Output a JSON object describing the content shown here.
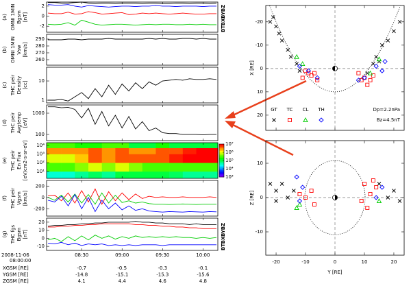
{
  "chart_data": [
    {
      "type": "line",
      "label": "(a)",
      "ylabel": [
        "OMNI 1MIN",
        "Bgsm",
        "[nT]"
      ],
      "xlim": [
        4,
        131
      ],
      "ylim": [
        -3.2,
        2.8
      ],
      "yticks": [
        2,
        0,
        -2
      ],
      "x": [
        5,
        10,
        15,
        20,
        25,
        30,
        35,
        40,
        45,
        50,
        55,
        60,
        65,
        70,
        75,
        80,
        85,
        90,
        95,
        100,
        105,
        110,
        115,
        120,
        125,
        130
      ],
      "series": [
        {
          "name": "BT",
          "color": "#000000",
          "values": [
            2.7,
            2.7,
            2.6,
            2.6,
            2.7,
            2.8,
            2.6,
            2.5,
            2.6,
            2.6,
            2.5,
            2.6,
            2.6,
            2.6,
            2.5,
            2.6,
            2.6,
            2.5,
            2.5,
            2.6,
            2.6,
            2.5,
            2.6,
            2.6,
            2.5,
            2.6
          ]
        },
        {
          "name": "BX",
          "color": "#0000ff",
          "values": [
            2.3,
            2.2,
            2.2,
            2.3,
            2.0,
            1.8,
            2.1,
            2.0,
            1.9,
            1.8,
            1.9,
            2.0,
            2.0,
            1.9,
            2.0,
            2.0,
            2.1,
            2.0,
            2.0,
            1.9,
            2.0,
            2.0,
            2.0,
            1.9,
            2.0,
            2.0
          ]
        },
        {
          "name": "BY",
          "color": "#ff0000",
          "values": [
            0.6,
            0.5,
            0.5,
            0.8,
            0.4,
            0.5,
            0.9,
            0.7,
            0.4,
            0.5,
            0.6,
            0.7,
            0.3,
            0.4,
            0.6,
            0.5,
            0.6,
            0.5,
            0.4,
            0.5,
            0.6,
            0.5,
            0.4,
            0.4,
            0.5,
            0.5
          ]
        },
        {
          "name": "BZ",
          "color": "#00cc00",
          "values": [
            -1.6,
            -1.7,
            -1.6,
            -1.3,
            -1.8,
            -0.8,
            -1.2,
            -1.6,
            -1.8,
            -1.7,
            -1.6,
            -1.6,
            -1.7,
            -1.8,
            -1.7,
            -1.6,
            -1.7,
            -1.6,
            -1.6,
            -1.7,
            -1.7,
            -1.6,
            -1.7,
            -1.6,
            -1.7,
            -1.7
          ]
        }
      ]
    },
    {
      "type": "line",
      "label": "(b)",
      "ylabel": [
        "OMNI 1MIN",
        "Vsw",
        "[km/s]"
      ],
      "xlim": [
        4,
        131
      ],
      "ylim": [
        252,
        297
      ],
      "yticks": [
        290,
        280,
        270,
        260
      ],
      "x": [
        5,
        10,
        15,
        20,
        25,
        30,
        35,
        40,
        45,
        50,
        55,
        60,
        65,
        70,
        75,
        80,
        85,
        90,
        95,
        100,
        105,
        110,
        115,
        120,
        125,
        130
      ],
      "series": [
        {
          "color": "#000000",
          "values": [
            289,
            289,
            289,
            290,
            290,
            289,
            290,
            290,
            290,
            291,
            290,
            290,
            290,
            290,
            290,
            291,
            290,
            291,
            290,
            290,
            291,
            291,
            290,
            291,
            290,
            290
          ]
        }
      ]
    },
    {
      "type": "line",
      "label": "(c)",
      "ylabel": [
        "THC peir",
        "Density",
        "[cc]"
      ],
      "xlim": [
        4,
        131
      ],
      "ylim": [
        0.72,
        52
      ],
      "log": true,
      "yticks": [
        10,
        1
      ],
      "x": [
        5,
        10,
        15,
        20,
        25,
        30,
        35,
        40,
        45,
        50,
        55,
        60,
        65,
        70,
        75,
        80,
        85,
        90,
        95,
        100,
        105,
        110,
        115,
        120,
        125,
        130
      ],
      "series": [
        {
          "color": "#000000",
          "values": [
            1.0,
            1.0,
            1.1,
            0.9,
            1.5,
            2.5,
            1.2,
            4,
            1.5,
            6,
            2,
            7,
            3,
            8,
            4,
            9,
            6,
            10,
            11,
            12,
            11,
            13,
            12,
            12,
            13,
            12
          ]
        }
      ]
    },
    {
      "type": "line",
      "label": "(d)",
      "ylabel": [
        "THC peir",
        "Avgtemp",
        "[eV]"
      ],
      "xlim": [
        4,
        131
      ],
      "ylim": [
        51,
        2440
      ],
      "log": true,
      "yticks": [
        1000,
        100
      ],
      "x": [
        5,
        10,
        15,
        20,
        25,
        30,
        35,
        40,
        45,
        50,
        55,
        60,
        65,
        70,
        75,
        80,
        85,
        90,
        95,
        100,
        105,
        110,
        115,
        120,
        125,
        130
      ],
      "series": [
        {
          "color": "#000000",
          "values": [
            2000,
            2000,
            1800,
            1900,
            1500,
            600,
            1700,
            300,
            1200,
            250,
            800,
            200,
            700,
            180,
            400,
            150,
            200,
            120,
            110,
            110,
            100,
            100,
            100,
            95,
            100,
            100
          ]
        }
      ]
    },
    {
      "type": "heatmap",
      "label": "(e)",
      "ylabel": [
        "THC peir",
        "En Flux",
        "[eV/cm2-s-sr-eV]"
      ],
      "xlim": [
        4,
        131
      ],
      "ylim": [
        1.6,
        20000
      ],
      "log": true,
      "yticks": [
        {
          "value": 10000,
          "label": "10⁴"
        },
        {
          "value": 1000,
          "label": "10³"
        },
        {
          "value": 100,
          "label": "10²"
        },
        {
          "value": 10,
          "label": "10¹"
        }
      ],
      "x_edges": [
        4,
        15,
        25,
        35,
        45,
        55,
        65,
        75,
        85,
        95,
        105,
        115,
        125,
        131
      ],
      "y_edges": [
        1.6,
        10,
        100,
        1000,
        5000,
        20000
      ],
      "values": [
        [
          30000.0,
          30000.0,
          50000.0,
          80000.0,
          50000.0,
          100000.0,
          100000.0,
          100000.0,
          100000.0,
          80000.0,
          50000.0,
          50000.0,
          50000.0
        ],
        [
          300000.0,
          300000.0,
          500000.0,
          1000000.0,
          500000.0,
          1000000.0,
          500000.0,
          300000.0,
          300000.0,
          300000.0,
          300000.0,
          300000.0,
          300000.0
        ],
        [
          1000000.0,
          1000000.0,
          2000000.0,
          5000000.0,
          3000000.0,
          5000000.0,
          5000000.0,
          5000000.0,
          5000000.0,
          8000000.0,
          10000000.0,
          10000000.0,
          10000000.0
        ],
        [
          3000000.0,
          3000000.0,
          3000000.0,
          5000000.0,
          3000000.0,
          5000000.0,
          3000000.0,
          3000000.0,
          5000000.0,
          5000000.0,
          8000000.0,
          10000000.0,
          10000000.0
        ],
        [
          300000.0,
          300000.0,
          200000.0,
          200000.0,
          300000.0,
          300000.0,
          100000.0,
          100000.0,
          200000.0,
          100000.0,
          100000.0,
          100000.0,
          100000.0
        ]
      ],
      "clim": [
        1000,
        10000000
      ],
      "cticks": [
        {
          "value": 10000000,
          "label": "10⁷"
        },
        {
          "value": 1000000,
          "label": "10⁶"
        },
        {
          "value": 100000,
          "label": "10⁵"
        },
        {
          "value": 10000,
          "label": "10⁴"
        },
        {
          "value": 1000,
          "label": "10³"
        }
      ]
    },
    {
      "type": "line",
      "label": "(f)",
      "ylabel": [
        "THC peir",
        "Vgsm",
        "[km/s]"
      ],
      "xlim": [
        4,
        131
      ],
      "ylim": [
        -330,
        300
      ],
      "yticks": [
        200,
        0,
        -200
      ],
      "x": [
        5,
        10,
        15,
        20,
        25,
        30,
        35,
        40,
        45,
        50,
        55,
        60,
        65,
        70,
        75,
        80,
        85,
        90,
        95,
        100,
        105,
        110,
        115,
        120,
        125,
        130
      ],
      "series": [
        {
          "color": "#ff0000",
          "values": [
            30,
            40,
            -60,
            80,
            -100,
            120,
            -80,
            150,
            -120,
            100,
            -60,
            80,
            -40,
            60,
            -20,
            20,
            0,
            10,
            0,
            0,
            10,
            0,
            0,
            0,
            10,
            0
          ]
        },
        {
          "color": "#00cc00",
          "values": [
            0,
            -50,
            40,
            -80,
            60,
            -100,
            50,
            -120,
            80,
            -100,
            40,
            -90,
            -60,
            -100,
            -80,
            -110,
            -120,
            -120,
            -125,
            -120,
            -115,
            -120,
            -125,
            -120,
            -120,
            -120
          ]
        },
        {
          "color": "#0000ff",
          "values": [
            -50,
            -80,
            20,
            -150,
            50,
            -200,
            0,
            -250,
            -50,
            -200,
            -100,
            -220,
            -150,
            -230,
            -200,
            -240,
            -250,
            -260,
            -250,
            -255,
            -260,
            -250,
            -255,
            -260,
            -250,
            -255
          ]
        }
      ]
    },
    {
      "type": "line",
      "label": "(g)",
      "ylabel": [
        "THC fgs",
        "Bgsm",
        "[nT]"
      ],
      "xlim": [
        4,
        131
      ],
      "ylim": [
        -15,
        25
      ],
      "yticks": [
        20,
        10,
        0,
        -10
      ],
      "xticks": [
        {
          "value": 30,
          "label": "08:30"
        },
        {
          "value": 60,
          "label": "09:00"
        },
        {
          "value": 90,
          "label": "09:30"
        },
        {
          "value": 120,
          "label": "10:00"
        }
      ],
      "x": [
        5,
        10,
        15,
        20,
        25,
        30,
        35,
        40,
        45,
        50,
        55,
        60,
        65,
        70,
        75,
        80,
        85,
        90,
        95,
        100,
        105,
        110,
        115,
        120,
        125,
        130
      ],
      "series": [
        {
          "name": "BT",
          "color": "#000000",
          "values": [
            15,
            16,
            16,
            17,
            17,
            18,
            18,
            19,
            19,
            20,
            20,
            20,
            20,
            21,
            20,
            20,
            19,
            19,
            18,
            18,
            18,
            17,
            18,
            17,
            17,
            17
          ]
        },
        {
          "name": "BX",
          "color": "#0000ff",
          "values": [
            -6,
            -7,
            -5,
            -8,
            -6,
            -9,
            -7,
            -8,
            -7,
            -9,
            -8,
            -9,
            -8,
            -9,
            -8,
            -8,
            -8,
            -9,
            -8,
            -8,
            -8,
            -8,
            -8,
            -8,
            -8,
            -8
          ]
        },
        {
          "name": "BY",
          "color": "#ff0000",
          "values": [
            14,
            14,
            15,
            15,
            16,
            16,
            17,
            17,
            18,
            18,
            18,
            18,
            18,
            17,
            17,
            16,
            16,
            15,
            15,
            14,
            14,
            13,
            13,
            12,
            12,
            12
          ]
        },
        {
          "name": "BZ",
          "color": "#00cc00",
          "values": [
            -2,
            0,
            -4,
            2,
            -3,
            3,
            -2,
            4,
            0,
            3,
            -1,
            2,
            0,
            3,
            1,
            2,
            1,
            2,
            1,
            2,
            1,
            1,
            0,
            1,
            0,
            1
          ]
        }
      ]
    },
    {
      "type": "scatter",
      "ylabel": "X [RE]",
      "xlim": [
        -23.5,
        23.5
      ],
      "ylim": [
        -27,
        26.5
      ],
      "y_inverted": true,
      "yticks": [
        -20,
        -10,
        0,
        10,
        20
      ],
      "annotations": [
        "Dp=2.2nPa",
        "Bz=4.5nT"
      ],
      "series": [
        {
          "name": "GT",
          "color": "#000000",
          "marker": "x",
          "x": [
            -22,
            -21,
            -20,
            -19,
            -18,
            -16,
            -15,
            -13,
            -12,
            16,
            18,
            20,
            22,
            14,
            13,
            11,
            15
          ],
          "values": [
            -20,
            -22,
            -18,
            -15,
            -12,
            -8,
            -5,
            -2,
            1,
            -10,
            -12,
            -16,
            -20,
            -5,
            -2,
            2,
            -3
          ]
        },
        {
          "name": "TC",
          "color": "#ff0000",
          "marker": "square",
          "x": [
            -10,
            -9,
            -8,
            -6,
            -11,
            -7,
            8,
            10,
            12,
            11,
            13,
            9
          ],
          "values": [
            1,
            2,
            3,
            5,
            4,
            2,
            2,
            4,
            5,
            7,
            3,
            5
          ]
        },
        {
          "name": "CL",
          "color": "#00cc00",
          "marker": "triangle",
          "x": [
            -13,
            -11,
            15,
            12
          ],
          "values": [
            -5,
            -2,
            -4,
            2
          ]
        },
        {
          "name": "TH",
          "color": "#0000ff",
          "marker": "diamond",
          "x": [
            -12,
            -9,
            -6,
            17,
            14,
            10,
            16,
            8
          ],
          "values": [
            -1,
            1,
            4,
            -3,
            -1,
            4,
            1,
            5
          ]
        }
      ]
    },
    {
      "type": "scatter",
      "ylabel": "Z [RE]",
      "xlabel": "Y [RE]",
      "xlim": [
        -23.5,
        23.5
      ],
      "ylim": [
        -16.8,
        16.6
      ],
      "xticks": [
        -20,
        -10,
        0,
        10,
        20
      ],
      "yticks": [
        10,
        0,
        -10
      ],
      "series": [
        {
          "color": "#000000",
          "marker": "x",
          "x": [
            -22,
            -20,
            -18,
            -20,
            -16,
            20,
            22,
            18,
            -14,
            15
          ],
          "values": [
            4,
            2,
            4,
            -1,
            0,
            2,
            -1,
            0,
            2,
            4
          ]
        },
        {
          "color": "#ff0000",
          "marker": "square",
          "x": [
            -10,
            -8,
            -7,
            -12,
            10,
            12,
            9,
            14,
            11,
            13
          ],
          "values": [
            0,
            2,
            -2,
            1,
            4,
            1,
            -1,
            3,
            -3,
            5
          ]
        },
        {
          "color": "#00cc00",
          "marker": "triangle",
          "x": [
            -12,
            -13,
            15
          ],
          "values": [
            -2,
            -3,
            -1
          ]
        },
        {
          "color": "#0000ff",
          "marker": "diamond",
          "x": [
            -13,
            -11,
            16,
            14,
            -12
          ],
          "values": [
            6,
            3,
            3,
            0,
            -1
          ]
        }
      ]
    }
  ],
  "ephemeris": {
    "date": "2008-11-06",
    "time": "08:00:00",
    "rows": [
      {
        "label": "XGSM [RE]",
        "values": [
          -0.7,
          -0.5,
          -0.3,
          -0.1
        ]
      },
      {
        "label": "YGSM [RE]",
        "values": [
          -14.8,
          -15.1,
          -15.3,
          -15.6
        ]
      },
      {
        "label": "ZGSM [RE]",
        "values": [
          4.1,
          4.4,
          4.6,
          4.8
        ]
      }
    ]
  }
}
